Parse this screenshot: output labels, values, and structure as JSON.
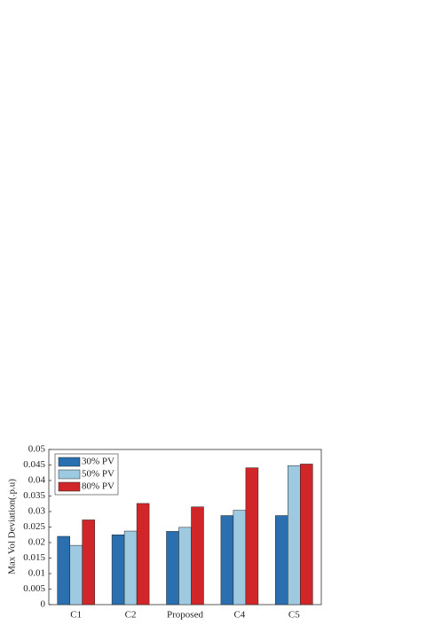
{
  "chart_data": {
    "type": "bar",
    "ylabel": "Max Vol Deviation(.p.u)",
    "categories": [
      "C1",
      "C2",
      "Proposed",
      "C4",
      "C5"
    ],
    "series": [
      {
        "name": "30% PV",
        "color": "#2a6fb0",
        "values": [
          0.022,
          0.0225,
          0.0236,
          0.0287,
          0.0287
        ]
      },
      {
        "name": "50% PV",
        "color": "#9ecae1",
        "values": [
          0.0191,
          0.0237,
          0.0249,
          0.0304,
          0.0448
        ]
      },
      {
        "name": "80% PV",
        "color": "#d0262a",
        "values": [
          0.0273,
          0.0326,
          0.0315,
          0.0441,
          0.0453
        ]
      }
    ],
    "ylim": [
      0,
      0.05
    ],
    "yticks": [
      0,
      0.005,
      0.01,
      0.015,
      0.02,
      0.025,
      0.03,
      0.035,
      0.04,
      0.045,
      0.05
    ],
    "legend": "upper left"
  }
}
